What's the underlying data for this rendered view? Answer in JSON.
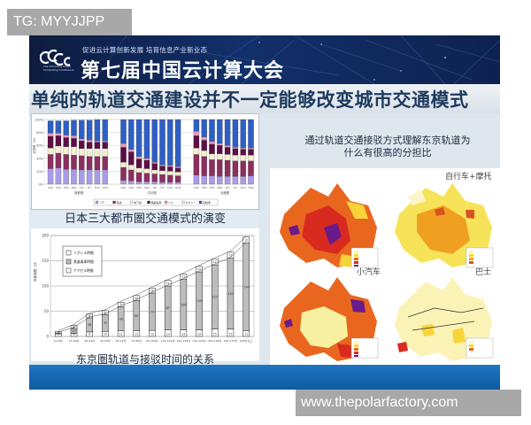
{
  "watermarks": {
    "top": "TG: MYYJJPP",
    "bottom": "www.thepolarfactory.com"
  },
  "banner": {
    "logo_text": "CCCC",
    "logo_subtitle": "The 7th China Cloud Computing Conference",
    "slogan": "促进云计算创新发展 培育信息产业新业态",
    "title": "第七届中国云计算大会"
  },
  "headline": "单纯的轨道交通建设并不一定能够改变城市交通模式",
  "right_panel": {
    "description_line1": "通过轨道交通接驳方式理解东京轨道为",
    "description_line2": "什么有很高的分担比",
    "map_labels": [
      "自行车+摩托",
      "小汽车",
      "巴士"
    ]
  },
  "chart_data": [
    {
      "type": "bar",
      "stacked": true,
      "title": "日本三大都市圏交通模式的演变",
      "ylabel": "分担率（%）",
      "ylim": [
        0,
        100
      ],
      "yticks": [
        "0%",
        "20%",
        "40%",
        "60%",
        "80%",
        "100%"
      ],
      "categories": [
        "S45",
        "S50",
        "S55",
        "S60",
        "H2",
        "H7",
        "H12",
        "H16"
      ],
      "groups": [
        "首都圏",
        "中京圏",
        "近畿圏"
      ],
      "legend": [
        "ＪＲ",
        "民鉄",
        "地下鉄",
        "路面電車",
        "バス",
        "タクシー",
        "自動車"
      ],
      "colors": [
        "#a99be8",
        "#8b2f5e",
        "#f4efcf",
        "#5c0f45",
        "#e79ab4",
        "#e8e8e8",
        "#2f5fc4"
      ],
      "series_by_group": {
        "首都圏": {
          "rail_total": [
            25,
            25,
            23,
            23,
            23,
            22,
            22,
            22
          ],
          "segments": [
            [
              24,
              22,
              10,
              18,
              5,
              0,
              19
            ],
            [
              25,
              23,
              11,
              16,
              4,
              0,
              19
            ],
            [
              23,
              23,
              12,
              14,
              4,
              0,
              22
            ],
            [
              23,
              22,
              13,
              13,
              4,
              0,
              24
            ],
            [
              22,
              22,
              11,
              12,
              3,
              0,
              29
            ],
            [
              22,
              21,
              12,
              10,
              3,
              0,
              31
            ],
            [
              22,
              21,
              12,
              10,
              2,
              0,
              33
            ],
            [
              22,
              21,
              12,
              10,
              2,
              0,
              33
            ]
          ]
        },
        "中京圏": {
          "segments": [
            [
              6,
              20,
              8,
              23,
              6,
              0,
              37
            ],
            [
              5,
              17,
              8,
              20,
              4,
              0,
              46
            ],
            [
              4,
              14,
              7,
              14,
              4,
              0,
              57
            ],
            [
              4,
              13,
              7,
              13,
              3,
              0,
              60
            ],
            [
              4,
              12,
              6,
              10,
              2,
              0,
              66
            ],
            [
              3,
              12,
              6,
              7,
              2,
              0,
              70
            ],
            [
              3,
              11,
              6,
              7,
              2,
              0,
              71
            ],
            [
              3,
              10,
              6,
              6,
              2,
              0,
              73
            ]
          ]
        },
        "近畿圏": {
          "segments": [
            [
              14,
              32,
              10,
              19,
              7,
              0,
              18
            ],
            [
              13,
              30,
              9,
              16,
              5,
              0,
              27
            ],
            [
              13,
              25,
              9,
              15,
              4,
              0,
              34
            ],
            [
              12,
              26,
              9,
              13,
              3,
              0,
              37
            ],
            [
              12,
              25,
              9,
              11,
              3,
              0,
              40
            ],
            [
              12,
              24,
              9,
              10,
              2,
              0,
              43
            ],
            [
              12,
              24,
              9,
              9,
              2,
              0,
              44
            ],
            [
              13,
              23,
              9,
              9,
              2,
              0,
              44
            ]
          ]
        }
      }
    },
    {
      "type": "bar",
      "stacked": true,
      "title": "东京圏轨道与接驳时间的关系",
      "ylabel": "所要時間（分）",
      "ylim": [
        0,
        200
      ],
      "yticks": [
        "0",
        "50",
        "100",
        "150",
        "200"
      ],
      "categories": [
        "0-14分",
        "15-29分",
        "30-44分",
        "45-59分",
        "60-74分",
        "75-89分",
        "90-104分",
        "105-119分",
        "120-134分",
        "135-149分",
        "150-164分",
        "165-179分",
        "180分以上"
      ],
      "legend": [
        "イグレス時間",
        "鉄道乗車時間",
        "アクセス時間"
      ],
      "series": [
        {
          "name": "アクセス時間",
          "values": [
            5,
            6,
            9,
            10,
            11,
            11,
            12,
            13,
            13,
            13,
            15,
            15,
            11
          ]
        },
        {
          "name": "鉄道乗車時間",
          "values": [
            2,
            10,
            28,
            33,
            48,
            60,
            74,
            87,
            100,
            115,
            127,
            140,
            174
          ]
        },
        {
          "name": "イグレス時間",
          "values": [
            3,
            6,
            8,
            8,
            9,
            10,
            10,
            11,
            11,
            11,
            12,
            12,
            12
          ]
        }
      ]
    }
  ]
}
